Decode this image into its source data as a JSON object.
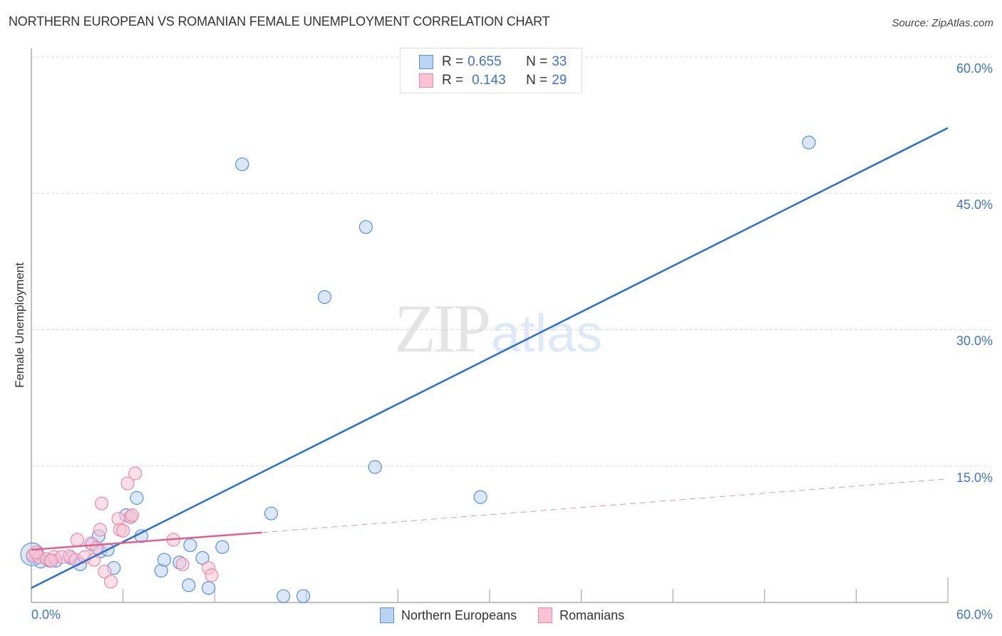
{
  "header": {
    "title": "NORTHERN EUROPEAN VS ROMANIAN FEMALE UNEMPLOYMENT CORRELATION CHART",
    "source": "Source: ZipAtlas.com"
  },
  "axes": {
    "ylabel": "Female Unemployment",
    "y_ticks": [
      "60.0%",
      "45.0%",
      "30.0%",
      "15.0%"
    ],
    "x_min_label": "0.0%",
    "x_max_label": "60.0%"
  },
  "legend": {
    "rows": [
      {
        "r_label": "R =",
        "r_value": "0.655",
        "n_label": "N =",
        "n_value": "33"
      },
      {
        "r_label": "R =",
        "r_value": "0.143",
        "n_label": "N =",
        "n_value": "29"
      }
    ],
    "series": [
      {
        "name": "Northern Europeans"
      },
      {
        "name": "Romanians"
      }
    ]
  },
  "watermark": {
    "zip": "ZIP",
    "atlas": "atlas"
  },
  "colors": {
    "blue_fill": "#b9d3f3",
    "blue_stroke": "#5b8fd8",
    "blue_line": "#2a6fd0",
    "pink_fill": "#f9c3d3",
    "pink_stroke": "#e88aa6",
    "pink_line": "#e0608a",
    "tick_text": "#3d74c9"
  },
  "chart_data": {
    "type": "scatter",
    "title": "NORTHERN EUROPEAN VS ROMANIAN FEMALE UNEMPLOYMENT CORRELATION CHART",
    "xlabel": "",
    "ylabel": "Female Unemployment",
    "xlim": [
      0,
      60
    ],
    "ylim": [
      0,
      60
    ],
    "x_tick_labels": [
      "0.0%",
      "60.0%"
    ],
    "y_tick_labels": [
      "15.0%",
      "30.0%",
      "45.0%",
      "60.0%"
    ],
    "grid": "horizontal dashed",
    "legend_position": "top-center and bottom",
    "series": [
      {
        "name": "Northern Europeans",
        "R": 0.655,
        "N": 33,
        "trendline": {
          "x": [
            0,
            60
          ],
          "y": [
            1.6,
            52.2
          ]
        },
        "points": [
          [
            0.1,
            5.0
          ],
          [
            0.6,
            4.5
          ],
          [
            1.2,
            4.6
          ],
          [
            1.6,
            4.6
          ],
          [
            2.6,
            4.9
          ],
          [
            3.2,
            4.2
          ],
          [
            4.0,
            6.4
          ],
          [
            4.4,
            7.3
          ],
          [
            4.5,
            5.6
          ],
          [
            5.0,
            5.8
          ],
          [
            5.4,
            3.8
          ],
          [
            6.2,
            9.6
          ],
          [
            6.5,
            9.4
          ],
          [
            6.9,
            11.5
          ],
          [
            7.2,
            7.3
          ],
          [
            8.5,
            3.5
          ],
          [
            8.7,
            4.7
          ],
          [
            9.7,
            4.4
          ],
          [
            10.3,
            1.9
          ],
          [
            10.4,
            6.3
          ],
          [
            11.2,
            4.9
          ],
          [
            11.6,
            1.6
          ],
          [
            12.5,
            6.1
          ],
          [
            13.8,
            48.2
          ],
          [
            15.7,
            9.8
          ],
          [
            16.5,
            0.7
          ],
          [
            17.8,
            0.7
          ],
          [
            19.2,
            33.6
          ],
          [
            21.9,
            41.3
          ],
          [
            22.5,
            14.9
          ],
          [
            29.4,
            11.6
          ],
          [
            50.9,
            50.6
          ],
          [
            0.05,
            5.3
          ]
        ]
      },
      {
        "name": "Romanians",
        "R": 0.143,
        "N": 29,
        "trendline_solid": {
          "x": [
            0,
            15.1
          ],
          "y": [
            5.8,
            7.7
          ]
        },
        "trendline_dashed": {
          "x": [
            15.1,
            60
          ],
          "y": [
            7.7,
            13.6
          ]
        },
        "points": [
          [
            0.1,
            5.2
          ],
          [
            0.5,
            5.0
          ],
          [
            1.0,
            4.8
          ],
          [
            1.5,
            5.0
          ],
          [
            2.0,
            5.0
          ],
          [
            2.5,
            5.1
          ],
          [
            2.9,
            4.7
          ],
          [
            3.0,
            6.9
          ],
          [
            3.5,
            5.0
          ],
          [
            3.9,
            6.5
          ],
          [
            4.1,
            4.7
          ],
          [
            4.3,
            6.0
          ],
          [
            4.5,
            8.0
          ],
          [
            4.6,
            10.9
          ],
          [
            4.8,
            3.4
          ],
          [
            5.2,
            2.3
          ],
          [
            5.7,
            9.2
          ],
          [
            5.8,
            8.0
          ],
          [
            6.0,
            7.9
          ],
          [
            6.3,
            13.1
          ],
          [
            6.5,
            9.4
          ],
          [
            6.6,
            9.6
          ],
          [
            6.8,
            14.2
          ],
          [
            9.3,
            6.9
          ],
          [
            9.9,
            4.2
          ],
          [
            11.6,
            3.8
          ],
          [
            11.8,
            3.0
          ],
          [
            0.3,
            5.5
          ],
          [
            1.3,
            4.6
          ]
        ]
      }
    ]
  }
}
